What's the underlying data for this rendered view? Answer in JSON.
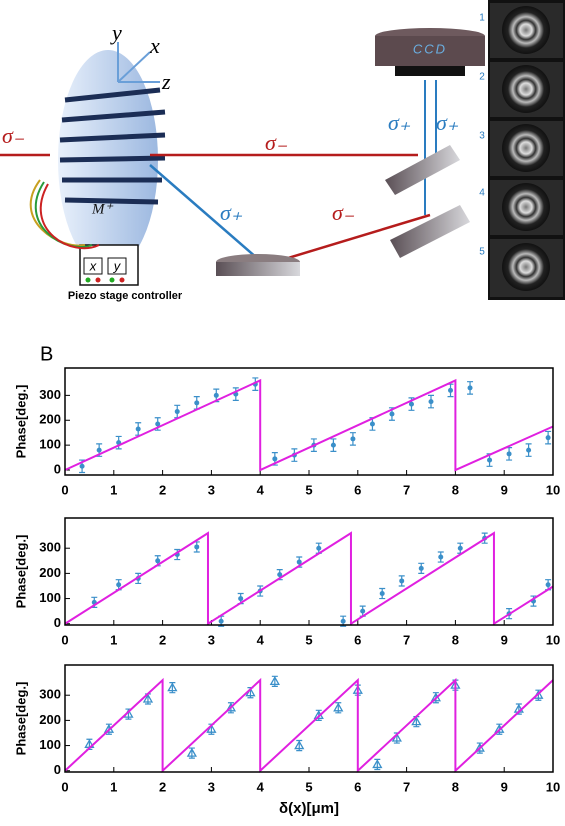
{
  "diagram": {
    "panel_label": "B",
    "labels": [
      "y",
      "x",
      "z",
      "σ₋",
      "σ₋",
      "σ₊",
      "σ₋",
      "σ₊",
      "σ₊",
      "M⁺",
      "CCD",
      "x",
      "y",
      "Piezo stage controller"
    ],
    "frames": [
      "1",
      "2",
      "3",
      "4",
      "5"
    ]
  },
  "chart_data": [
    {
      "type": "scatter",
      "y_label": "Phase[deg.]",
      "xlim": [
        0,
        10
      ],
      "ylim": [
        -20,
        410
      ],
      "xticks": [
        0,
        1,
        2,
        3,
        4,
        5,
        6,
        7,
        8,
        9,
        10
      ],
      "yticks": [
        0,
        100,
        200,
        300
      ],
      "series": [
        {
          "marker": "circle",
          "color": "#3a8fc9",
          "x": [
            0.35,
            0.7,
            1.1,
            1.5,
            1.9,
            2.3,
            2.7,
            3.1,
            3.5,
            3.9,
            4.3,
            4.7,
            5.1,
            5.5,
            5.9,
            6.3,
            6.7,
            7.1,
            7.5,
            7.9,
            8.3,
            8.7,
            9.1,
            9.5,
            9.9
          ],
          "values": [
            15,
            80,
            110,
            165,
            185,
            235,
            270,
            300,
            305,
            345,
            45,
            60,
            100,
            100,
            125,
            185,
            225,
            265,
            275,
            320,
            330,
            40,
            65,
            80,
            130
          ],
          "errors": [
            25,
            25,
            25,
            25,
            25,
            25,
            25,
            25,
            25,
            25,
            25,
            25,
            25,
            25,
            25,
            25,
            25,
            25,
            25,
            25,
            25,
            25,
            25,
            25,
            25
          ]
        },
        {
          "marker": "line",
          "color": "#e020e0",
          "x": [
            0,
            4,
            4,
            8,
            8,
            10
          ],
          "values": [
            0,
            360,
            0,
            360,
            0,
            175
          ]
        }
      ]
    },
    {
      "type": "scatter",
      "y_label": "Phase[deg.]",
      "xlim": [
        0,
        10
      ],
      "ylim": [
        -5,
        420
      ],
      "xticks": [
        0,
        1,
        2,
        3,
        4,
        5,
        6,
        7,
        8,
        9,
        10
      ],
      "yticks": [
        0,
        100,
        200,
        300
      ],
      "series": [
        {
          "marker": "circle",
          "color": "#3a8fc9",
          "x": [
            0.6,
            1.1,
            1.5,
            1.9,
            2.3,
            2.7,
            3.2,
            3.6,
            4.0,
            4.4,
            4.8,
            5.2,
            5.7,
            6.1,
            6.5,
            6.9,
            7.3,
            7.7,
            8.1,
            8.6,
            9.1,
            9.6,
            9.9
          ],
          "values": [
            85,
            155,
            180,
            250,
            275,
            305,
            10,
            100,
            130,
            195,
            245,
            300,
            10,
            50,
            120,
            170,
            220,
            265,
            300,
            340,
            40,
            90,
            155
          ],
          "errors": [
            20,
            20,
            20,
            20,
            20,
            20,
            20,
            20,
            20,
            20,
            20,
            20,
            20,
            20,
            20,
            20,
            20,
            20,
            20,
            20,
            20,
            20,
            20
          ]
        },
        {
          "marker": "line",
          "color": "#e020e0",
          "x": [
            0,
            2.93,
            2.93,
            5.86,
            5.86,
            8.79,
            8.79,
            10
          ],
          "values": [
            0,
            360,
            0,
            360,
            0,
            360,
            0,
            148
          ]
        }
      ]
    },
    {
      "type": "scatter",
      "y_label": "Phase[deg.]",
      "x_label": "δ(x)[μm]",
      "xlim": [
        0,
        10
      ],
      "ylim": [
        -5,
        420
      ],
      "xticks": [
        0,
        1,
        2,
        3,
        4,
        5,
        6,
        7,
        8,
        9,
        10
      ],
      "yticks": [
        0,
        100,
        200,
        300
      ],
      "series": [
        {
          "marker": "triangle",
          "color": "#3a8fc9",
          "x": [
            0.5,
            0.9,
            1.3,
            1.7,
            2.2,
            2.6,
            3.0,
            3.4,
            3.8,
            4.3,
            4.8,
            5.2,
            5.6,
            6.0,
            6.4,
            6.8,
            7.2,
            7.6,
            8.0,
            8.5,
            8.9,
            9.3,
            9.7
          ],
          "values": [
            105,
            165,
            225,
            285,
            330,
            70,
            165,
            250,
            310,
            355,
            100,
            220,
            250,
            320,
            25,
            130,
            195,
            290,
            340,
            90,
            165,
            245,
            300
          ],
          "errors": [
            20,
            20,
            20,
            20,
            20,
            20,
            20,
            20,
            20,
            20,
            20,
            20,
            20,
            20,
            20,
            20,
            20,
            20,
            20,
            20,
            20,
            20,
            20
          ]
        },
        {
          "marker": "line",
          "color": "#e020e0",
          "x": [
            0,
            2,
            2,
            4,
            4,
            6,
            6,
            8,
            8,
            10
          ],
          "values": [
            0,
            360,
            0,
            360,
            0,
            360,
            0,
            360,
            0,
            360
          ]
        }
      ]
    }
  ]
}
